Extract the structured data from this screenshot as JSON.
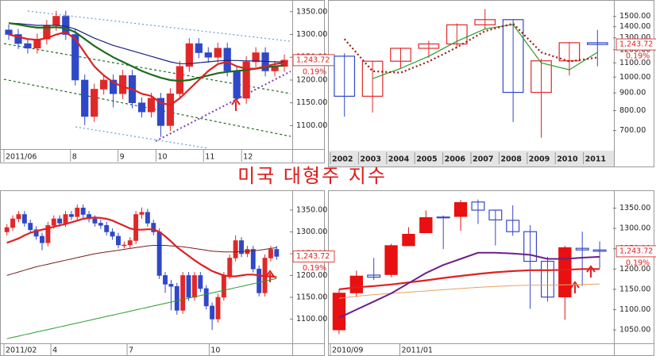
{
  "title": "미국 대형주 지수",
  "chart_data": [
    {
      "type": "candlestick",
      "up_color": "#e02828",
      "down_color": "#2f48c8",
      "hollow_up": false,
      "hollow_down": false,
      "log_scale": false,
      "price_label": "1,243.72",
      "change_label": "0.19%",
      "categories": [
        "2011/06",
        null,
        null,
        null,
        null,
        null,
        null,
        "8",
        null,
        null,
        null,
        null,
        "9",
        null,
        null,
        null,
        "10",
        null,
        null,
        null,
        null,
        "11",
        null,
        null,
        null,
        "12",
        null,
        null,
        null,
        null
      ],
      "open": [
        1310,
        1300,
        1280,
        1270,
        1290,
        1320,
        1340,
        1300,
        1200,
        1120,
        1180,
        1200,
        1170,
        1210,
        1150,
        1130,
        1160,
        1100,
        1170,
        1230,
        1280,
        1260,
        1250,
        1270,
        1220,
        1160,
        1240,
        1260,
        1220,
        1230
      ],
      "high": [
        1322,
        1312,
        1292,
        1302,
        1332,
        1352,
        1352,
        1312,
        1212,
        1192,
        1212,
        1212,
        1222,
        1222,
        1162,
        1172,
        1172,
        1182,
        1242,
        1292,
        1292,
        1272,
        1282,
        1282,
        1232,
        1252,
        1272,
        1272,
        1242,
        1256
      ],
      "low": [
        1288,
        1268,
        1258,
        1258,
        1278,
        1308,
        1288,
        1188,
        1101,
        1108,
        1168,
        1140,
        1158,
        1138,
        1118,
        1118,
        1075,
        1088,
        1158,
        1218,
        1248,
        1238,
        1238,
        1208,
        1158,
        1148,
        1228,
        1208,
        1208,
        1218
      ],
      "close": [
        1300,
        1280,
        1270,
        1290,
        1320,
        1340,
        1300,
        1200,
        1120,
        1180,
        1200,
        1170,
        1210,
        1150,
        1130,
        1160,
        1100,
        1170,
        1230,
        1280,
        1260,
        1250,
        1270,
        1220,
        1160,
        1240,
        1260,
        1220,
        1230,
        1243.72
      ],
      "lines": [
        {
          "color": "#1a237e",
          "width": 1.2,
          "dash": false,
          "values": [
            1325,
            1324,
            1322,
            1320,
            1320,
            1320,
            1318,
            1312,
            1302,
            1292,
            1284,
            1276,
            1270,
            1264,
            1258,
            1252,
            1246,
            1240,
            1236,
            1236,
            1238,
            1240,
            1242,
            1243,
            1243,
            1242,
            1242,
            1241,
            1240,
            1240
          ]
        },
        {
          "color": "#1e6b1e",
          "width": 2.2,
          "dash": false,
          "values": [
            1325,
            1322,
            1318,
            1315,
            1315,
            1316,
            1314,
            1305,
            1290,
            1275,
            1262,
            1250,
            1240,
            1230,
            1220,
            1212,
            1205,
            1200,
            1198,
            1200,
            1205,
            1210,
            1215,
            1218,
            1220,
            1222,
            1225,
            1228,
            1230,
            1232
          ]
        },
        {
          "color": "#e02020",
          "width": 2.2,
          "dash": false,
          "values": [
            1300,
            1295,
            1290,
            1288,
            1292,
            1300,
            1305,
            1290,
            1260,
            1230,
            1210,
            1195,
            1185,
            1180,
            1170,
            1165,
            1150,
            1145,
            1160,
            1180,
            1200,
            1220,
            1235,
            1240,
            1230,
            1225,
            1225,
            1230,
            1235,
            1238
          ]
        }
      ],
      "ylim": [
        1052,
        1367
      ],
      "yticks": [
        {
          "value": 1100,
          "label": "1100.00"
        },
        {
          "value": 1150,
          "label": "1150.00"
        },
        {
          "value": 1200,
          "label": "1200.00"
        },
        {
          "value": 1250,
          "label": "1250.00"
        },
        {
          "value": 1300,
          "label": "1300.00"
        },
        {
          "value": 1350,
          "label": "1350.00"
        }
      ]
    },
    {
      "type": "candlestick",
      "up_color": "#e02828",
      "down_color": "#2f48c8",
      "hollow_up": true,
      "hollow_down": true,
      "log_scale": true,
      "price_label": "1,243.72",
      "change_label": "0.19%",
      "categories": [
        "2002",
        "2003",
        "2004",
        "2005",
        "2006",
        "2007",
        "2008",
        "2009",
        "2010",
        "2011"
      ],
      "open": [
        1150,
        880,
        1112,
        1212,
        1248,
        1418,
        1468,
        903,
        1115,
        1258
      ],
      "high": [
        1172,
        1112,
        1217,
        1275,
        1431,
        1576,
        1471,
        1130,
        1263,
        1370
      ],
      "low": [
        768,
        789,
        1063,
        1137,
        1220,
        1374,
        741,
        667,
        1011,
        1075
      ],
      "close": [
        880,
        1112,
        1212,
        1248,
        1418,
        1468,
        903,
        1115,
        1258,
        1243.72
      ],
      "lines": [
        {
          "color": "#2e9a2e",
          "width": 1.2,
          "dash": false,
          "values": [
            null,
            990,
            1060,
            1150,
            1270,
            1380,
            1420,
            1100,
            1050,
            1180
          ]
        },
        {
          "color": "#a01818",
          "width": 2.2,
          "dash": true,
          "values": [
            1290,
            1040,
            1030,
            1110,
            1220,
            1360,
            1430,
            1180,
            1110,
            1140
          ]
        }
      ],
      "ylim": [
        625,
        1630
      ],
      "yticks": [
        {
          "value": 700,
          "label": "700.00"
        },
        {
          "value": 800,
          "label": "800.00"
        },
        {
          "value": 900,
          "label": "900.00"
        },
        {
          "value": 1000,
          "label": "1000.00"
        },
        {
          "value": 1100,
          "label": "1100.00"
        },
        {
          "value": 1200,
          "label": "1200.00"
        },
        {
          "value": 1300,
          "label": "1300.00"
        },
        {
          "value": 1400,
          "label": "1400.00"
        },
        {
          "value": 1500,
          "label": "1500.00"
        }
      ]
    },
    {
      "type": "candlestick",
      "up_color": "#e02828",
      "down_color": "#2f48c8",
      "hollow_up": false,
      "hollow_down": false,
      "log_scale": false,
      "price_label": "1,243.72",
      "change_label": "0.19%",
      "categories": [
        "2011/02",
        null,
        null,
        null,
        null,
        null,
        null,
        null,
        "4",
        null,
        null,
        null,
        null,
        null,
        null,
        null,
        null,
        null,
        null,
        null,
        null,
        "7",
        null,
        null,
        null,
        null,
        null,
        null,
        null,
        null,
        null,
        null,
        null,
        null,
        null,
        "10",
        null,
        null,
        null,
        null,
        null,
        null,
        null,
        null,
        null,
        null,
        null
      ],
      "open": [
        1300,
        1310,
        1330,
        1340,
        1320,
        1305,
        1290,
        1275,
        1315,
        1330,
        1320,
        1340,
        1335,
        1355,
        1340,
        1330,
        1320,
        1315,
        1300,
        1290,
        1270,
        1270,
        1280,
        1340,
        1345,
        1320,
        1300,
        1200,
        1180,
        1175,
        1120,
        1200,
        1150,
        1200,
        1170,
        1130,
        1100,
        1150,
        1200,
        1240,
        1280,
        1250,
        1260,
        1215,
        1160,
        1240,
        1260
      ],
      "high": [
        1318,
        1338,
        1348,
        1348,
        1328,
        1313,
        1298,
        1323,
        1338,
        1338,
        1348,
        1348,
        1363,
        1363,
        1348,
        1338,
        1328,
        1323,
        1308,
        1298,
        1278,
        1288,
        1348,
        1356,
        1353,
        1328,
        1308,
        1208,
        1190,
        1183,
        1208,
        1208,
        1208,
        1208,
        1178,
        1138,
        1158,
        1208,
        1248,
        1292,
        1288,
        1268,
        1268,
        1223,
        1248,
        1268,
        1268
      ],
      "low": [
        1292,
        1302,
        1322,
        1312,
        1297,
        1282,
        1258,
        1267,
        1307,
        1312,
        1312,
        1327,
        1327,
        1332,
        1322,
        1312,
        1307,
        1292,
        1282,
        1262,
        1262,
        1262,
        1272,
        1330,
        1312,
        1292,
        1192,
        1160,
        1120,
        1110,
        1112,
        1142,
        1142,
        1162,
        1122,
        1075,
        1092,
        1142,
        1192,
        1232,
        1242,
        1242,
        1207,
        1152,
        1152,
        1232,
        1236
      ],
      "close": [
        1310,
        1330,
        1340,
        1320,
        1305,
        1290,
        1275,
        1315,
        1330,
        1320,
        1340,
        1335,
        1355,
        1340,
        1330,
        1320,
        1315,
        1300,
        1290,
        1270,
        1270,
        1280,
        1340,
        1345,
        1320,
        1300,
        1200,
        1180,
        1175,
        1120,
        1200,
        1150,
        1200,
        1170,
        1130,
        1100,
        1150,
        1200,
        1240,
        1280,
        1250,
        1260,
        1215,
        1160,
        1240,
        1260,
        1243.72
      ],
      "lines": [
        {
          "color": "#2e9a2e",
          "width": 1,
          "dash": false,
          "values": [
            1055,
            1058,
            1061,
            1064,
            1067,
            1070,
            1073,
            1076,
            1079,
            1082,
            1085,
            1088,
            1091,
            1094,
            1097,
            1100,
            1103,
            1106,
            1109,
            1112,
            1115,
            1118,
            1121,
            1124,
            1127,
            1130,
            1133,
            1136,
            1139,
            1142,
            1145,
            1148,
            1151,
            1154,
            1157,
            1160,
            1163,
            1166,
            1169,
            1172,
            1175,
            1178,
            1181,
            1184,
            1187,
            1190,
            1193
          ]
        },
        {
          "color": "#7a1c1c",
          "width": 1,
          "dash": false,
          "values": [
            1200,
            1204,
            1208,
            1212,
            1216,
            1220,
            1223,
            1226,
            1229,
            1232,
            1235,
            1238,
            1241,
            1244,
            1247,
            1250,
            1252,
            1254,
            1256,
            1258,
            1260,
            1262,
            1264,
            1266,
            1268,
            1269,
            1269,
            1269,
            1268,
            1267,
            1266,
            1264,
            1262,
            1260,
            1258,
            1256,
            1255,
            1254,
            1254,
            1254,
            1255,
            1256,
            1257,
            1258,
            1260,
            1262,
            1264
          ]
        },
        {
          "color": "#e02020",
          "width": 2.2,
          "dash": false,
          "values": [
            1275,
            1280,
            1285,
            1292,
            1298,
            1302,
            1305,
            1308,
            1312,
            1315,
            1318,
            1322,
            1326,
            1330,
            1332,
            1333,
            1332,
            1330,
            1326,
            1320,
            1314,
            1308,
            1305,
            1305,
            1306,
            1306,
            1300,
            1290,
            1278,
            1265,
            1255,
            1245,
            1235,
            1226,
            1218,
            1210,
            1205,
            1200,
            1198,
            1198,
            1200,
            1202,
            1202,
            1200,
            1198,
            1198,
            1196
          ]
        }
      ],
      "ylim": [
        1048,
        1390
      ],
      "yticks": [
        {
          "value": 1100,
          "label": "1100.00"
        },
        {
          "value": 1150,
          "label": "1150.00"
        },
        {
          "value": 1200,
          "label": "1200.00"
        },
        {
          "value": 1250,
          "label": "1250.00"
        },
        {
          "value": 1300,
          "label": "1300.00"
        },
        {
          "value": 1350,
          "label": "1350.00"
        }
      ]
    },
    {
      "type": "candlestick",
      "up_color": "#e81010",
      "down_color": "#3848c8",
      "hollow_up": false,
      "hollow_down": true,
      "log_scale": false,
      "price_label": "1,243.72",
      "change_label": "0.19%",
      "categories": [
        "2010/09",
        null,
        null,
        null,
        "2011/01",
        null,
        null,
        null,
        null,
        null,
        null,
        null,
        null,
        null,
        null,
        null
      ],
      "open": [
        1050,
        1141,
        1185,
        1186,
        1257,
        1289,
        1328,
        1329,
        1365,
        1345,
        1320,
        1292,
        1219,
        1131,
        1251,
        1247
      ],
      "high": [
        1150,
        1196,
        1227,
        1262,
        1303,
        1344,
        1332,
        1370,
        1371,
        1346,
        1357,
        1308,
        1230,
        1257,
        1292,
        1268
      ],
      "low": [
        1040,
        1131,
        1173,
        1180,
        1257,
        1289,
        1249,
        1294,
        1311,
        1258,
        1282,
        1102,
        1120,
        1075,
        1158,
        1202
      ],
      "close": [
        1141,
        1183,
        1180,
        1258,
        1286,
        1327,
        1326,
        1364,
        1345,
        1321,
        1292,
        1219,
        1131,
        1253,
        1247,
        1243.72
      ],
      "lines": [
        {
          "color": "#e8a060",
          "width": 1,
          "dash": false,
          "values": [
            1128,
            1133,
            1137,
            1140,
            1143,
            1146,
            1149,
            1152,
            1155,
            1157,
            1159,
            1160,
            1160,
            1161,
            1162,
            1163
          ]
        },
        {
          "color": "#e02020",
          "width": 2.2,
          "dash": false,
          "values": [
            1150,
            1155,
            1158,
            1162,
            1167,
            1172,
            1178,
            1183,
            1188,
            1192,
            1195,
            1197,
            1197,
            1198,
            1200,
            1200
          ]
        },
        {
          "color": "#6a1f8a",
          "width": 2,
          "dash": false,
          "values": [
            1080,
            1100,
            1120,
            1140,
            1165,
            1190,
            1210,
            1225,
            1240,
            1240,
            1238,
            1235,
            1225,
            1225,
            1228,
            1230
          ]
        }
      ],
      "ylim": [
        1021,
        1388
      ],
      "yticks": [
        {
          "value": 1050,
          "label": "1050.00"
        },
        {
          "value": 1100,
          "label": "1100.00"
        },
        {
          "value": 1150,
          "label": "1150.00"
        },
        {
          "value": 1200,
          "label": "1200.00"
        },
        {
          "value": 1250,
          "label": "1250.00"
        },
        {
          "value": 1300,
          "label": "1300.00"
        },
        {
          "value": 1350,
          "label": "1350.00"
        }
      ]
    }
  ]
}
